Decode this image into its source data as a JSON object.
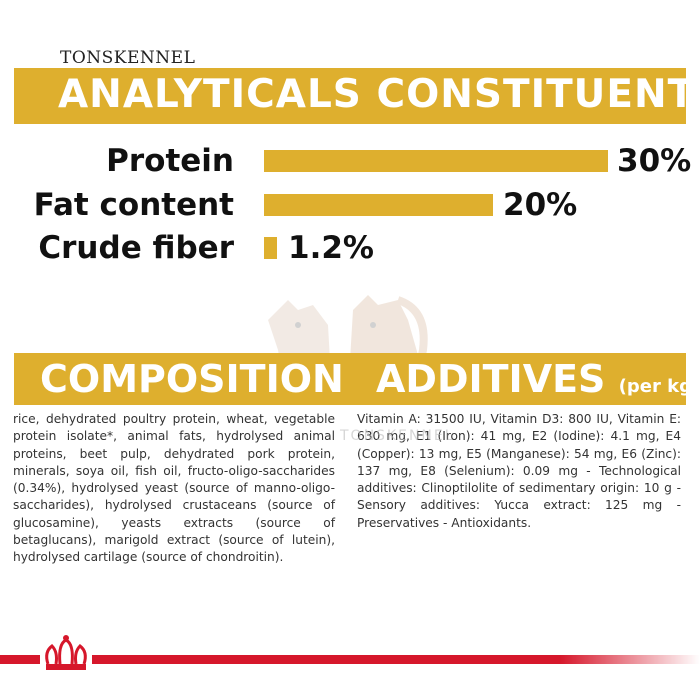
{
  "brand": "TONSKENNEL",
  "analytics": {
    "title": "ANALYTICALS CONSTITUENTS",
    "rows": [
      {
        "label": "Protein",
        "value": "30%",
        "level_percent": 30
      },
      {
        "label": "Fat content",
        "value": "20%",
        "level_percent": 20
      },
      {
        "label": "Crude fiber",
        "value": "1.2%",
        "level_percent": 1.2
      }
    ]
  },
  "composition": {
    "title": "COMPOSITION",
    "text": "rice, dehydrated poultry protein, wheat, vegetable protein isolate*, animal fats, hydrolysed animal proteins, beet pulp, dehydrated pork protein, minerals, soya oil, fish oil, fructo-oligo-saccharides (0.34%), hydrolysed yeast (source of manno-oligo-saccharides), hydrolysed crustaceans (source of glucosamine), yeasts extracts (source of betaglucans), marigold extract (source of lutein), hydrolysed cartilage (source of chondroitin)."
  },
  "additives": {
    "title": "ADDITIVES",
    "unit": "(per kg)",
    "text": "Vitamin A: 31500 IU, Vitamin D3: 800 IU, Vitamin E: 630 mg, E1 (Iron): 41 mg, E2 (Iodine): 4.1 mg, E4 (Copper): 13 mg, E5 (Manganese): 54 mg, E6 (Zinc): 137 mg, E8 (Selenium): 0.09 mg - Technological additives: Clinoptilolite of sedimentary origin: 10 g - Sensory additives: Yucca extract: 125 mg - Preservatives - Antioxidants."
  },
  "watermark": {
    "text": "TONSKENNEL"
  },
  "colors": {
    "accent": "#deaf2e",
    "footer_red": "#d6172b"
  },
  "icons": {
    "watermark": "dogs-logo-icon",
    "footer": "royal-crown-icon"
  }
}
